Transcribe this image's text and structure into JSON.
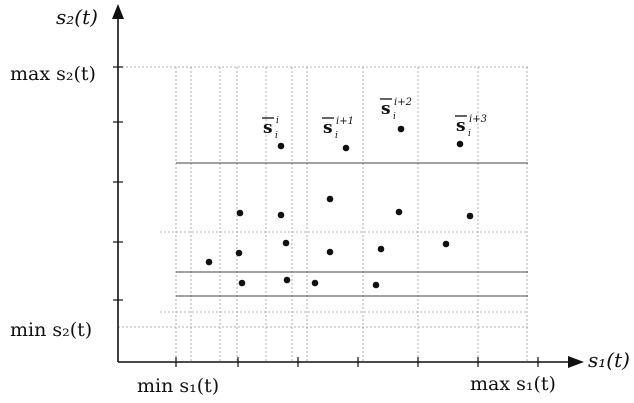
{
  "axes": {
    "x_label": "s₁(t)",
    "y_label": "s₂(t)",
    "x_min_label": "min s₁(t)",
    "x_max_label": "max s₁(t)",
    "y_min_label": "min s₂(t)",
    "y_max_label": "max s₂(t)"
  },
  "point_labels": [
    {
      "base": "s",
      "sub": "i",
      "sup": "i"
    },
    {
      "base": "s",
      "sub": "i",
      "sup": "i+1"
    },
    {
      "base": "s",
      "sub": "i",
      "sup": "i+2"
    },
    {
      "base": "s",
      "sub": "i",
      "sup": "i+3"
    }
  ],
  "colors": {
    "ink": "#111111",
    "grid": "#9a9a9a",
    "background": "#ffffff"
  }
}
